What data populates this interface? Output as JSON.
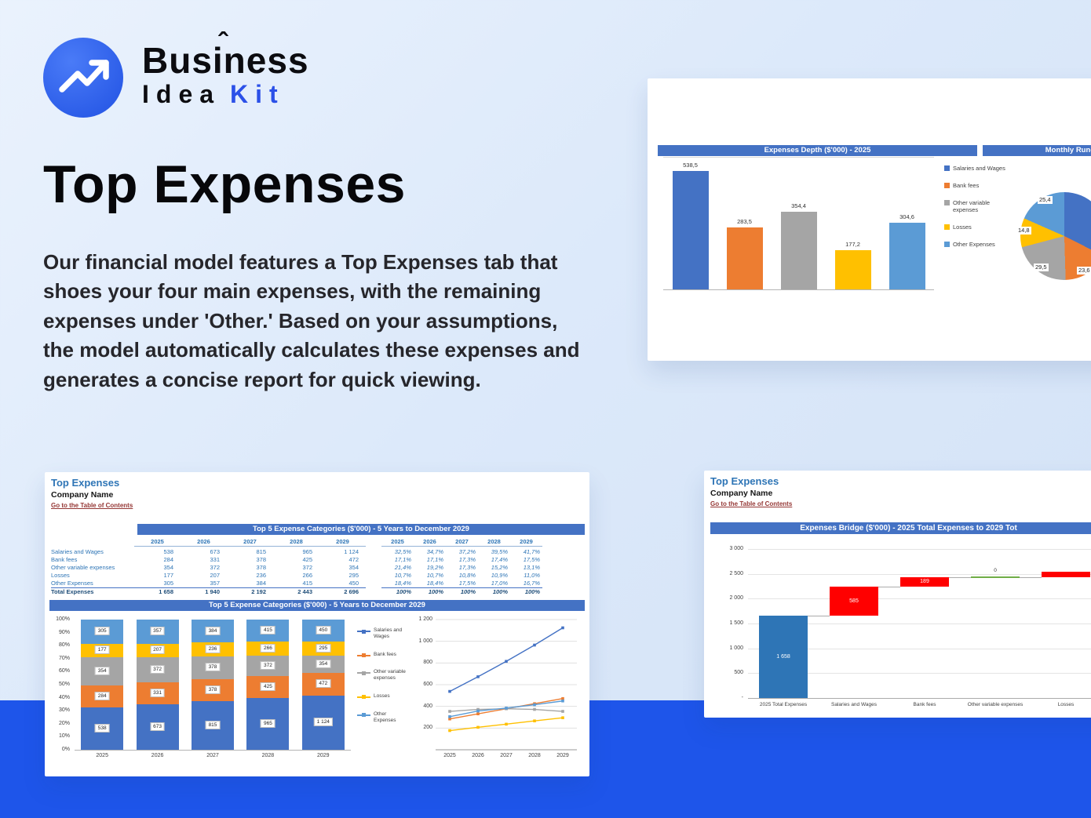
{
  "brand": {
    "word1": "Business",
    "accent": "ˆ",
    "word2_black": "Idea",
    "word2_blue": "Kit"
  },
  "hero": {
    "title": "Top Expenses",
    "description": "Our financial model features a Top Expenses tab that shoes your four main expenses, with the remaining expenses under 'Other.' Based on your assumptions, the model automatically calculates these expenses and generates a concise report for quick viewing."
  },
  "colors": {
    "accent_band": "#1E55EA",
    "brand_blue": "#2B50E8",
    "excel_header": "#4472C4",
    "sheet_title_blue": "#2E75B6",
    "link_red": "#953735",
    "series": [
      "#4472C4",
      "#ED7D31",
      "#A5A5A5",
      "#FFC000",
      "#5B9BD5"
    ],
    "waterfall_increase": "#FF0000",
    "waterfall_total": "#2E75B6"
  },
  "top_card": {
    "bar_header": "Expenses Depth ($'000) - 2025",
    "pie_header": "Monthly Run-Rate ($'000"
  },
  "sheet1": {
    "title": "Top Expenses",
    "company": "Company Name",
    "link": "Go to the Table of Contents",
    "table_header": "Top 5 Expense Categories ($'000) - 5 Years to December 2029",
    "chart_header": "Top 5 Expense Categories ($'000) - 5 Years to December 2029",
    "years": [
      "2025",
      "2026",
      "2027",
      "2028",
      "2029"
    ],
    "rows": [
      {
        "label": "Salaries and Wages",
        "values": [
          "538",
          "673",
          "815",
          "965",
          "1 124"
        ],
        "pct": [
          "32,5%",
          "34,7%",
          "37,2%",
          "39,5%",
          "41,7%"
        ]
      },
      {
        "label": "Bank fees",
        "values": [
          "284",
          "331",
          "378",
          "425",
          "472"
        ],
        "pct": [
          "17,1%",
          "17,1%",
          "17,3%",
          "17,4%",
          "17,5%"
        ]
      },
      {
        "label": "Other variable expenses",
        "values": [
          "354",
          "372",
          "378",
          "372",
          "354"
        ],
        "pct": [
          "21,4%",
          "19,2%",
          "17,3%",
          "15,2%",
          "13,1%"
        ]
      },
      {
        "label": "Losses",
        "values": [
          "177",
          "207",
          "236",
          "266",
          "295"
        ],
        "pct": [
          "10,7%",
          "10,7%",
          "10,8%",
          "10,9%",
          "11,0%"
        ]
      },
      {
        "label": "Other Expenses",
        "values": [
          "305",
          "357",
          "384",
          "415",
          "450"
        ],
        "pct": [
          "18,4%",
          "18,4%",
          "17,5%",
          "17,0%",
          "16,7%"
        ]
      }
    ],
    "total": {
      "label": "Total Expenses",
      "values": [
        "1 658",
        "1 940",
        "2 192",
        "2 443",
        "2 696"
      ],
      "pct": [
        "100%",
        "100%",
        "100%",
        "100%",
        "100%"
      ]
    }
  },
  "sheet2": {
    "title": "Top Expenses",
    "company": "Company Name",
    "link": "Go to the Table of Contents",
    "header": "Expenses Bridge ($'000) - 2025 Total Expenses to 2029 Tot"
  },
  "chart_data": [
    {
      "id": "expenses_depth",
      "type": "bar",
      "title": "Expenses Depth ($'000) - 2025",
      "categories": [
        "Salaries and Wages",
        "Bank fees",
        "Other variable expenses",
        "Losses",
        "Other Expenses"
      ],
      "values": [
        538.5,
        283.5,
        354.4,
        177.2,
        304.6
      ],
      "value_labels": [
        "538,5",
        "283,5",
        "354,4",
        "177,2",
        "304,6"
      ],
      "colors": [
        "#4472C4",
        "#ED7D31",
        "#A5A5A5",
        "#FFC000",
        "#5B9BD5"
      ],
      "ylim": [
        0,
        600
      ],
      "legend_position": "right"
    },
    {
      "id": "monthly_run_rate",
      "type": "pie",
      "title": "Monthly Run-Rate ($'000",
      "categories": [
        "Salaries and Wages",
        "Bank fees",
        "Other variable expenses",
        "Losses",
        "Other Expenses"
      ],
      "values": [
        44.8,
        23.6,
        29.5,
        14.8,
        25.4
      ],
      "visible_labels": [
        "25,4",
        "14,8",
        "29,5",
        "23,6"
      ],
      "colors": [
        "#4472C4",
        "#ED7D31",
        "#A5A5A5",
        "#FFC000",
        "#5B9BD5"
      ]
    },
    {
      "id": "top5_stacked",
      "type": "bar",
      "stacked": true,
      "title": "Top 5 Expense Categories ($'000) - 5 Years to December 2029",
      "categories": [
        "2025",
        "2026",
        "2027",
        "2028",
        "2029"
      ],
      "series": [
        {
          "name": "Salaries and Wages",
          "color": "#4472C4",
          "values": [
            538,
            673,
            815,
            965,
            1124
          ],
          "labels": [
            "538",
            "673",
            "815",
            "965",
            "1 124"
          ]
        },
        {
          "name": "Bank fees",
          "color": "#ED7D31",
          "values": [
            284,
            331,
            378,
            425,
            472
          ],
          "labels": [
            "284",
            "331",
            "378",
            "425",
            "472"
          ]
        },
        {
          "name": "Other variable expenses",
          "color": "#A5A5A5",
          "values": [
            354,
            372,
            378,
            372,
            354
          ],
          "labels": [
            "354",
            "372",
            "378",
            "372",
            "354"
          ]
        },
        {
          "name": "Losses",
          "color": "#FFC000",
          "values": [
            177,
            207,
            236,
            266,
            295
          ],
          "labels": [
            "177",
            "207",
            "236",
            "266",
            "295"
          ]
        },
        {
          "name": "Other Expenses",
          "color": "#5B9BD5",
          "values": [
            305,
            357,
            384,
            415,
            450
          ],
          "labels": [
            "305",
            "357",
            "384",
            "415",
            "450"
          ]
        }
      ],
      "y_ticks": [
        "100%",
        "90%",
        "80%",
        "70%",
        "60%",
        "50%",
        "40%",
        "30%",
        "20%",
        "10%",
        "0%"
      ]
    },
    {
      "id": "top5_lines",
      "type": "line",
      "series_ref": "top5_stacked",
      "x": [
        "2025",
        "2026",
        "2027",
        "2028",
        "2029"
      ],
      "ylim": [
        0,
        1200
      ],
      "y_ticks": [
        "1 200",
        "1 000",
        "800",
        "600",
        "400",
        "200"
      ]
    },
    {
      "id": "expenses_bridge",
      "type": "waterfall",
      "title": "Expenses Bridge ($'000) - 2025 Total Expenses to 2029 Tot",
      "categories": [
        "2025 Total Expenses",
        "Salaries and Wages",
        "Bank fees",
        "Other variable expenses",
        "Losses"
      ],
      "segments": [
        {
          "start": 0,
          "end": 1658,
          "color": "#2E75B6",
          "label": "1 658"
        },
        {
          "start": 1658,
          "end": 2243,
          "color": "#FF0000",
          "label": "585"
        },
        {
          "start": 2243,
          "end": 2432,
          "color": "#FF0000",
          "label": "189"
        },
        {
          "start": 2432,
          "end": 2432,
          "color": "#70AD47",
          "label": "0"
        },
        {
          "start": 2432,
          "end": 2550,
          "color": "#FF0000",
          "label": ""
        }
      ],
      "ylim": [
        0,
        3000
      ],
      "y_ticks": [
        "3 000",
        "2 500",
        "2 000",
        "1 500",
        "1 000",
        "500",
        "-"
      ]
    }
  ]
}
